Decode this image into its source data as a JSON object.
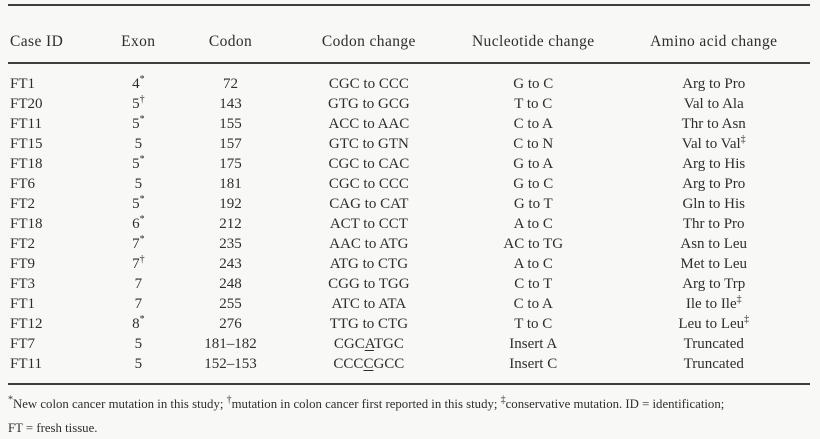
{
  "table": {
    "columns": [
      "Case ID",
      "Exon",
      "Codon",
      "Codon change",
      "Nucleotide change",
      "Amino acid change"
    ],
    "rows": [
      {
        "case_id": "FT1",
        "exon": "4",
        "exon_sup": "*",
        "codon": "72",
        "codon_change": "CGC to CCC",
        "nucleotide_change": "G to C",
        "amino_acid_change": "Arg to Pro",
        "amino_sup": ""
      },
      {
        "case_id": "FT20",
        "exon": "5",
        "exon_sup": "†",
        "codon": "143",
        "codon_change": "GTG to GCG",
        "nucleotide_change": "T to C",
        "amino_acid_change": "Val to Ala",
        "amino_sup": ""
      },
      {
        "case_id": "FT11",
        "exon": "5",
        "exon_sup": "*",
        "codon": "155",
        "codon_change": "ACC to AAC",
        "nucleotide_change": "C to A",
        "amino_acid_change": "Thr to Asn",
        "amino_sup": ""
      },
      {
        "case_id": "FT15",
        "exon": "5",
        "exon_sup": "",
        "codon": "157",
        "codon_change": "GTC to GTN",
        "nucleotide_change": "C to N",
        "amino_acid_change": "Val to Val",
        "amino_sup": "‡"
      },
      {
        "case_id": "FT18",
        "exon": "5",
        "exon_sup": "*",
        "codon": "175",
        "codon_change": "CGC to CAC",
        "nucleotide_change": "G to A",
        "amino_acid_change": "Arg to His",
        "amino_sup": ""
      },
      {
        "case_id": "FT6",
        "exon": "5",
        "exon_sup": "",
        "codon": "181",
        "codon_change": "CGC to CCC",
        "nucleotide_change": "G to C",
        "amino_acid_change": "Arg to Pro",
        "amino_sup": ""
      },
      {
        "case_id": "FT2",
        "exon": "5",
        "exon_sup": "*",
        "codon": "192",
        "codon_change": "CAG to CAT",
        "nucleotide_change": "G to T",
        "amino_acid_change": "Gln to His",
        "amino_sup": ""
      },
      {
        "case_id": "FT18",
        "exon": "6",
        "exon_sup": "*",
        "codon": "212",
        "codon_change": "ACT to CCT",
        "nucleotide_change": "A to C",
        "amino_acid_change": "Thr to Pro",
        "amino_sup": ""
      },
      {
        "case_id": "FT2",
        "exon": "7",
        "exon_sup": "*",
        "codon": "235",
        "codon_change": "AAC to ATG",
        "nucleotide_change": "AC to TG",
        "amino_acid_change": "Asn to Leu",
        "amino_sup": ""
      },
      {
        "case_id": "FT9",
        "exon": "7",
        "exon_sup": "†",
        "codon": "243",
        "codon_change": "ATG to CTG",
        "nucleotide_change": "A to C",
        "amino_acid_change": "Met to Leu",
        "amino_sup": ""
      },
      {
        "case_id": "FT3",
        "exon": "7",
        "exon_sup": "",
        "codon": "248",
        "codon_change": "CGG to TGG",
        "nucleotide_change": "C to T",
        "amino_acid_change": "Arg to Trp",
        "amino_sup": ""
      },
      {
        "case_id": "FT1",
        "exon": "7",
        "exon_sup": "",
        "codon": "255",
        "codon_change": "ATC to ATA",
        "nucleotide_change": "C to A",
        "amino_acid_change": "Ile to Ile",
        "amino_sup": "‡"
      },
      {
        "case_id": "FT12",
        "exon": "8",
        "exon_sup": "*",
        "codon": "276",
        "codon_change": "TTG to CTG",
        "nucleotide_change": "T to C",
        "amino_acid_change": "Leu to Leu",
        "amino_sup": "‡"
      },
      {
        "case_id": "FT7",
        "exon": "5",
        "exon_sup": "",
        "codon": "181–182",
        "codon_change": "CGC[A]TGC",
        "nucleotide_change": "Insert A",
        "amino_acid_change": "Truncated",
        "amino_sup": ""
      },
      {
        "case_id": "FT11",
        "exon": "5",
        "exon_sup": "",
        "codon": "152–153",
        "codon_change": "CCC[C]GCC",
        "nucleotide_change": "Insert C",
        "amino_acid_change": "Truncated",
        "amino_sup": ""
      }
    ]
  },
  "footnote": {
    "line1_segments": [
      {
        "sup": "*"
      },
      {
        "text": "New colon cancer mutation in this study; "
      },
      {
        "sup": "†"
      },
      {
        "text": "mutation in colon cancer first reported in this study; "
      },
      {
        "sup": "‡"
      },
      {
        "text": "conservative mutation. ID = identification;"
      }
    ],
    "line2": "FT = fresh tissue."
  }
}
